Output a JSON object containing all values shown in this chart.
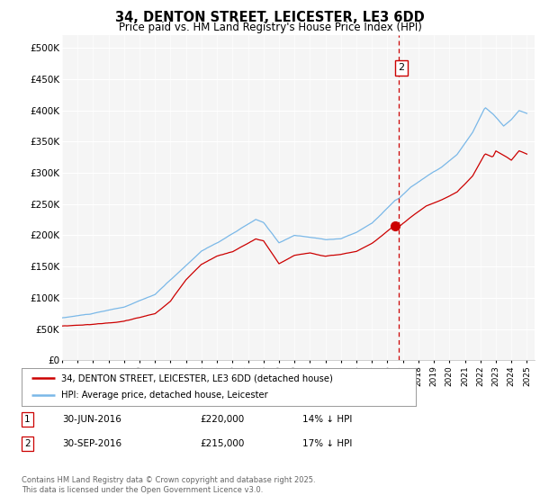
{
  "title_line1": "34, DENTON STREET, LEICESTER, LE3 6DD",
  "title_line2": "Price paid vs. HM Land Registry's House Price Index (HPI)",
  "ylim": [
    0,
    520000
  ],
  "yticks": [
    0,
    50000,
    100000,
    150000,
    200000,
    250000,
    300000,
    350000,
    400000,
    450000,
    500000
  ],
  "xlim_start": 1995.0,
  "xlim_end": 2025.5,
  "hpi_color": "#7ab8e8",
  "price_color": "#cc0000",
  "vline_color": "#cc0000",
  "vline_x": 2016.75,
  "sale_x": 2016.5,
  "sale_y": 215000,
  "marker2_label": "2",
  "legend_line1": "34, DENTON STREET, LEICESTER, LE3 6DD (detached house)",
  "legend_line2": "HPI: Average price, detached house, Leicester",
  "table_row1": [
    "1",
    "30-JUN-2016",
    "£220,000",
    "14% ↓ HPI"
  ],
  "table_row2": [
    "2",
    "30-SEP-2016",
    "£215,000",
    "17% ↓ HPI"
  ],
  "footer": "Contains HM Land Registry data © Crown copyright and database right 2025.\nThis data is licensed under the Open Government Licence v3.0.",
  "background_color": "#ffffff",
  "plot_bg_color": "#f5f5f5"
}
